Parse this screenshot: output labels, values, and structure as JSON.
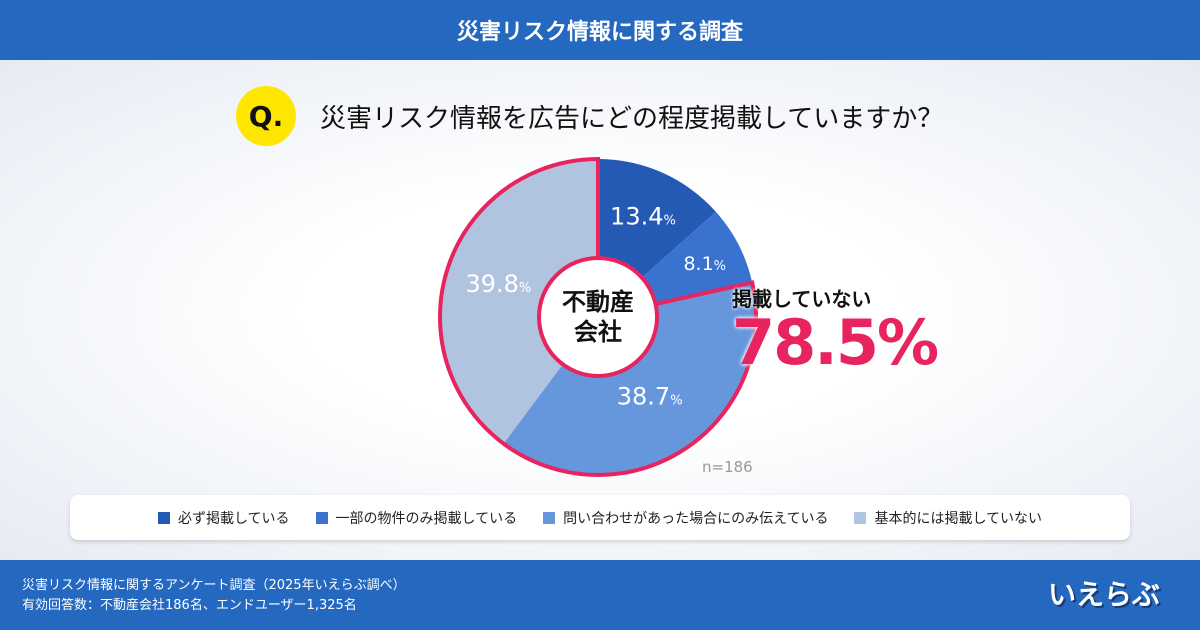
{
  "header": {
    "title": "災害リスク情報に関する調査"
  },
  "question": {
    "badge": "Q.",
    "text": "災害リスク情報を広告にどの程度掲載していますか？"
  },
  "chart_data": {
    "type": "pie",
    "center_label": "不動産会社",
    "categories": [
      "必ず掲載している",
      "一部の物件のみ掲載している",
      "問い合わせがあった場合にのみ伝えている",
      "基本的には掲載していない"
    ],
    "values": [
      13.4,
      8.1,
      38.7,
      39.8
    ],
    "labels": [
      "13.4",
      "8.1",
      "38.7",
      "39.8"
    ],
    "unit": "%",
    "colors": [
      "#2459b4",
      "#3a72cf",
      "#6696dc",
      "#b0c4e0"
    ],
    "highlight": {
      "label": "掲載していない",
      "value": "78.5%",
      "color": "#e8245f",
      "segments": [
        2,
        3
      ]
    },
    "n": "n=186",
    "legend_placement": "bottom"
  },
  "footer": {
    "line1": "災害リスク情報に関するアンケート調査（2025年いえらぶ調べ）",
    "line2": "有効回答数：不動産会社186名、エンドユーザー1,325名",
    "logo": "いえらぶ"
  }
}
